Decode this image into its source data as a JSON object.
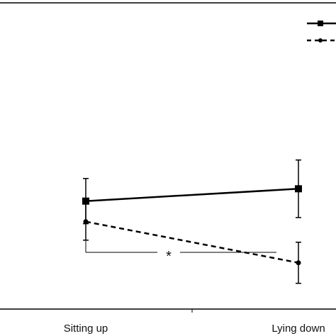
{
  "chart_data": {
    "type": "line",
    "categories": [
      "Sitting up",
      "Lying down"
    ],
    "ylim": [
      0,
      100
    ],
    "series": [
      {
        "line_style": "solid",
        "marker": "square",
        "color": "#000000",
        "values": [
          47,
          53
        ],
        "error": [
          [
            11,
            11
          ],
          [
            14,
            14
          ]
        ]
      },
      {
        "line_style": "dashed",
        "marker": "circle",
        "color": "#000000",
        "values": [
          37,
          17
        ],
        "error": [
          [
            9,
            9
          ],
          [
            10,
            10
          ]
        ]
      }
    ],
    "annotations": [
      {
        "text": "*",
        "type": "significance-bracket",
        "between": [
          "Sitting up",
          "Lying down"
        ]
      }
    ],
    "legend": {
      "placement": "top-right"
    },
    "grid": false
  }
}
